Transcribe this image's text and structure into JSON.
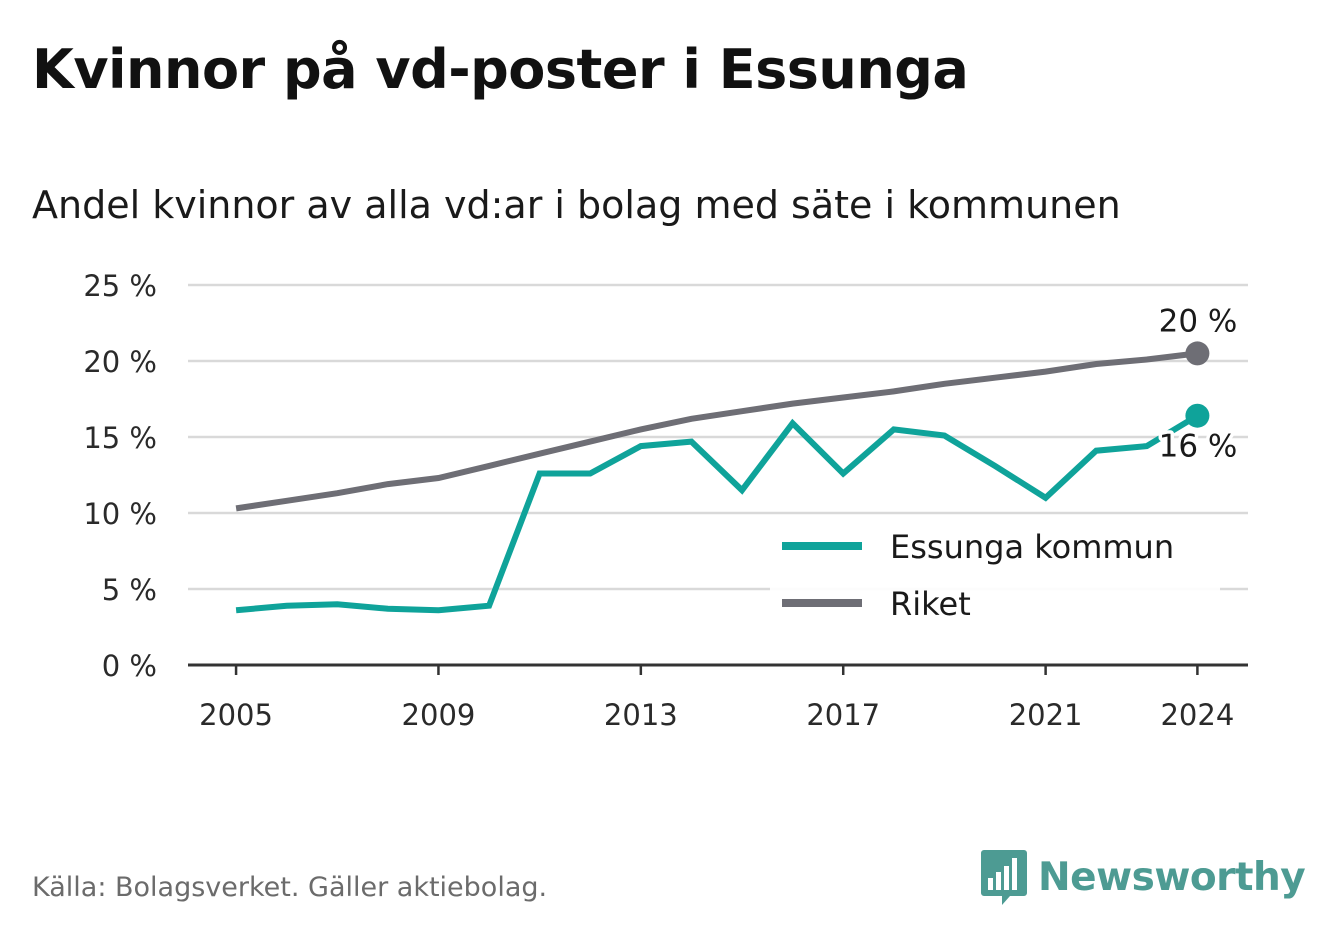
{
  "header": {
    "title": "Kvinnor på vd-poster i Essunga",
    "subtitle": "Andel kvinnor av alla vd:ar i bolag med säte i kommunen"
  },
  "footer": {
    "source": "Källa: Bolagsverket. Gäller aktiebolag.",
    "brand": "Newsworthy",
    "brand_icon": "bar-chart-speech-bubble-icon",
    "brand_color": "#4d9b93"
  },
  "chart_data": {
    "type": "line",
    "title": "Kvinnor på vd-poster i Essunga",
    "subtitle": "Andel kvinnor av alla vd:ar i bolag med säte i kommunen",
    "xlabel": "",
    "ylabel": "",
    "x": [
      2005,
      2006,
      2007,
      2008,
      2009,
      2010,
      2011,
      2012,
      2013,
      2014,
      2015,
      2016,
      2017,
      2018,
      2019,
      2020,
      2021,
      2022,
      2023,
      2024
    ],
    "xticks": [
      "2005",
      "2009",
      "2013",
      "2017",
      "2021",
      "2024"
    ],
    "ylim": [
      0,
      25
    ],
    "yticks": [
      "0 %",
      "5 %",
      "10 %",
      "15 %",
      "20 %",
      "25 %"
    ],
    "ytick_values": [
      0,
      5,
      10,
      15,
      20,
      25
    ],
    "grid": true,
    "legend_position": "bottom-right",
    "series": [
      {
        "name": "Essunga kommun",
        "color": "#0fa39a",
        "values": [
          3.6,
          3.9,
          4.0,
          3.7,
          3.6,
          3.9,
          12.6,
          12.6,
          14.4,
          14.7,
          11.5,
          15.9,
          12.6,
          15.5,
          15.1,
          13.1,
          11.0,
          14.1,
          14.4,
          16.4
        ],
        "end_label": "16 %"
      },
      {
        "name": "Riket",
        "color": "#6e6e75",
        "values": [
          10.3,
          10.8,
          11.3,
          11.9,
          12.3,
          13.1,
          13.9,
          14.7,
          15.5,
          16.2,
          16.7,
          17.2,
          17.6,
          18.0,
          18.5,
          18.9,
          19.3,
          19.8,
          20.1,
          20.5
        ],
        "end_label": "20 %"
      }
    ]
  }
}
